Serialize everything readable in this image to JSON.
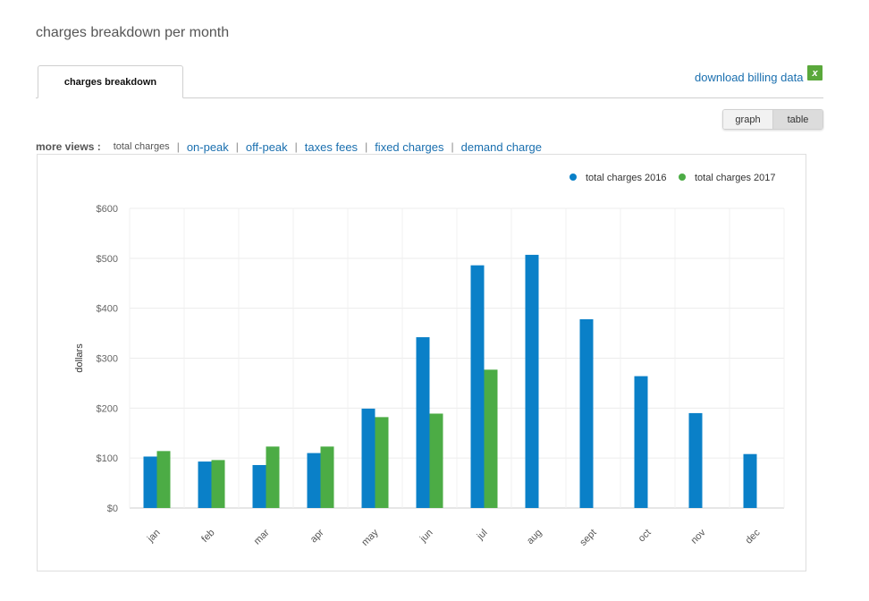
{
  "page": {
    "title": "charges breakdown per month"
  },
  "tabs": [
    {
      "label": "charges breakdown",
      "active": true
    }
  ],
  "download": {
    "label": "download billing data",
    "icon": "excel-icon",
    "icon_glyph": "x"
  },
  "view_toggle": {
    "graph_label": "graph",
    "table_label": "table",
    "selected": "table"
  },
  "more_views": {
    "label": "more views :",
    "current": "total charges",
    "links": [
      "on-peak",
      "off-peak",
      "taxes fees",
      "fixed charges",
      "demand charge"
    ]
  },
  "colors": {
    "series_2016": "#0a80c8",
    "series_2017": "#4cac45",
    "link": "#1a6faf"
  },
  "chart_data": {
    "type": "bar",
    "title": "",
    "xlabel": "",
    "ylabel": "dollars",
    "ylim": [
      0,
      600
    ],
    "yticks": [
      0,
      100,
      200,
      300,
      400,
      500,
      600
    ],
    "ytick_labels": [
      "$0",
      "$100",
      "$200",
      "$300",
      "$400",
      "$500",
      "$600"
    ],
    "grid": true,
    "legend_position": "top-right",
    "categories": [
      "jan",
      "feb",
      "mar",
      "apr",
      "may",
      "jun",
      "jul",
      "aug",
      "sept",
      "oct",
      "nov",
      "dec"
    ],
    "series": [
      {
        "name": "total charges 2016",
        "color": "#0a80c8",
        "values": [
          103,
          93,
          86,
          110,
          199,
          342,
          486,
          507,
          378,
          264,
          190,
          108
        ]
      },
      {
        "name": "total charges 2017",
        "color": "#4cac45",
        "values": [
          114,
          96,
          123,
          123,
          182,
          189,
          277,
          null,
          null,
          null,
          null,
          null
        ]
      }
    ]
  }
}
